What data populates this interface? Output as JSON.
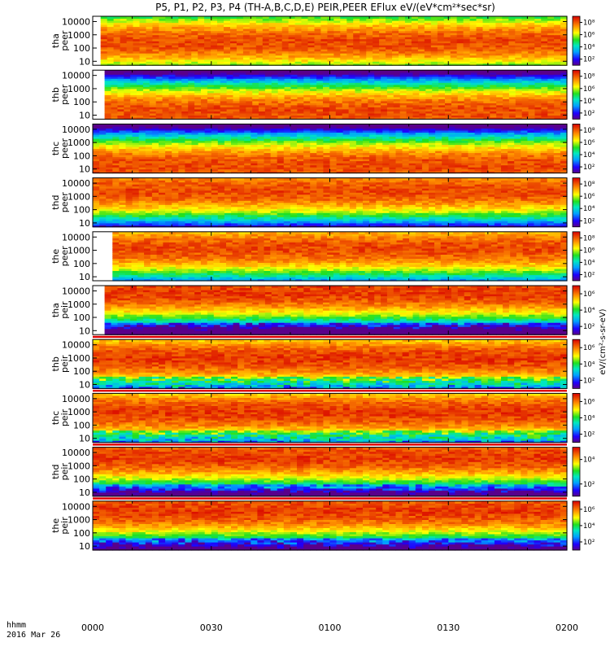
{
  "chart_data": {
    "type": "heatmap",
    "title": "P5, P1, P2, P3, P4 (TH-A,B,C,D,E) PEIR,PEER EFlux eV/(eV*cm²*sec*sr)",
    "x_axis": {
      "label": "hhmm",
      "date": "2016 Mar 26",
      "ticks": [
        "0000",
        "0030",
        "0100",
        "0130",
        "0200"
      ],
      "range": [
        "00:00",
        "02:00"
      ]
    },
    "y_scale": "log",
    "y_ticks": [
      "10",
      "100",
      "1000",
      "10000"
    ],
    "y_range": [
      5,
      25000
    ],
    "colorbar_scale": "log",
    "colorbar_unit_label": "eV/(cm²-s-sr-eV)",
    "panels": [
      {
        "probe": "tha",
        "species": "peer",
        "ylabel": "tha\npeer",
        "colorbar_ticks": [
          "10²",
          "10⁴",
          "10⁶",
          "10⁸"
        ],
        "peak_energy_eV": 300,
        "data_start": "00:02"
      },
      {
        "probe": "thb",
        "species": "peer",
        "ylabel": "thb\npeer",
        "colorbar_ticks": [
          "10²",
          "10⁴",
          "10⁶",
          "10⁸"
        ],
        "peak_energy_eV": 20,
        "data_start": "00:03"
      },
      {
        "probe": "thc",
        "species": "peer",
        "ylabel": "thc\npeer",
        "colorbar_ticks": [
          "10²",
          "10⁴",
          "10⁶",
          "10⁸"
        ],
        "peak_energy_eV": 20,
        "data_start": "00:00"
      },
      {
        "probe": "thd",
        "species": "peer",
        "ylabel": "thd\npeer",
        "colorbar_ticks": [
          "10²",
          "10⁴",
          "10⁶",
          "10⁸"
        ],
        "peak_energy_eV": 3000,
        "data_start": "00:00"
      },
      {
        "probe": "the",
        "species": "peer",
        "ylabel": "the\npeer",
        "colorbar_ticks": [
          "10²",
          "10⁴",
          "10⁶",
          "10⁸"
        ],
        "peak_energy_eV": 1500,
        "data_start": "00:05"
      },
      {
        "probe": "tha",
        "species": "peir",
        "ylabel": "tha\npeir",
        "colorbar_ticks": [
          "10²",
          "10⁴",
          "10⁶"
        ],
        "peak_energy_eV": 8000,
        "data_start": "00:03"
      },
      {
        "probe": "thb",
        "species": "peir",
        "ylabel": "thb\npeir",
        "colorbar_ticks": [
          "10²",
          "10⁴",
          "10⁶"
        ],
        "peak_energy_eV": 1000,
        "data_start": "00:00"
      },
      {
        "probe": "thc",
        "species": "peir",
        "ylabel": "thc\npeir",
        "colorbar_ticks": [
          "10²",
          "10⁴",
          "10⁶"
        ],
        "peak_energy_eV": 1000,
        "data_start": "00:00"
      },
      {
        "probe": "thd",
        "species": "peir",
        "ylabel": "thd\npeir",
        "colorbar_ticks": [
          "10²",
          "10⁴"
        ],
        "peak_energy_eV": 5000,
        "data_start": "00:00"
      },
      {
        "probe": "the",
        "species": "peir",
        "ylabel": "the\npeir",
        "colorbar_ticks": [
          "10²",
          "10⁴",
          "10⁶"
        ],
        "peak_energy_eV": 5000,
        "data_start": "00:00"
      }
    ]
  }
}
